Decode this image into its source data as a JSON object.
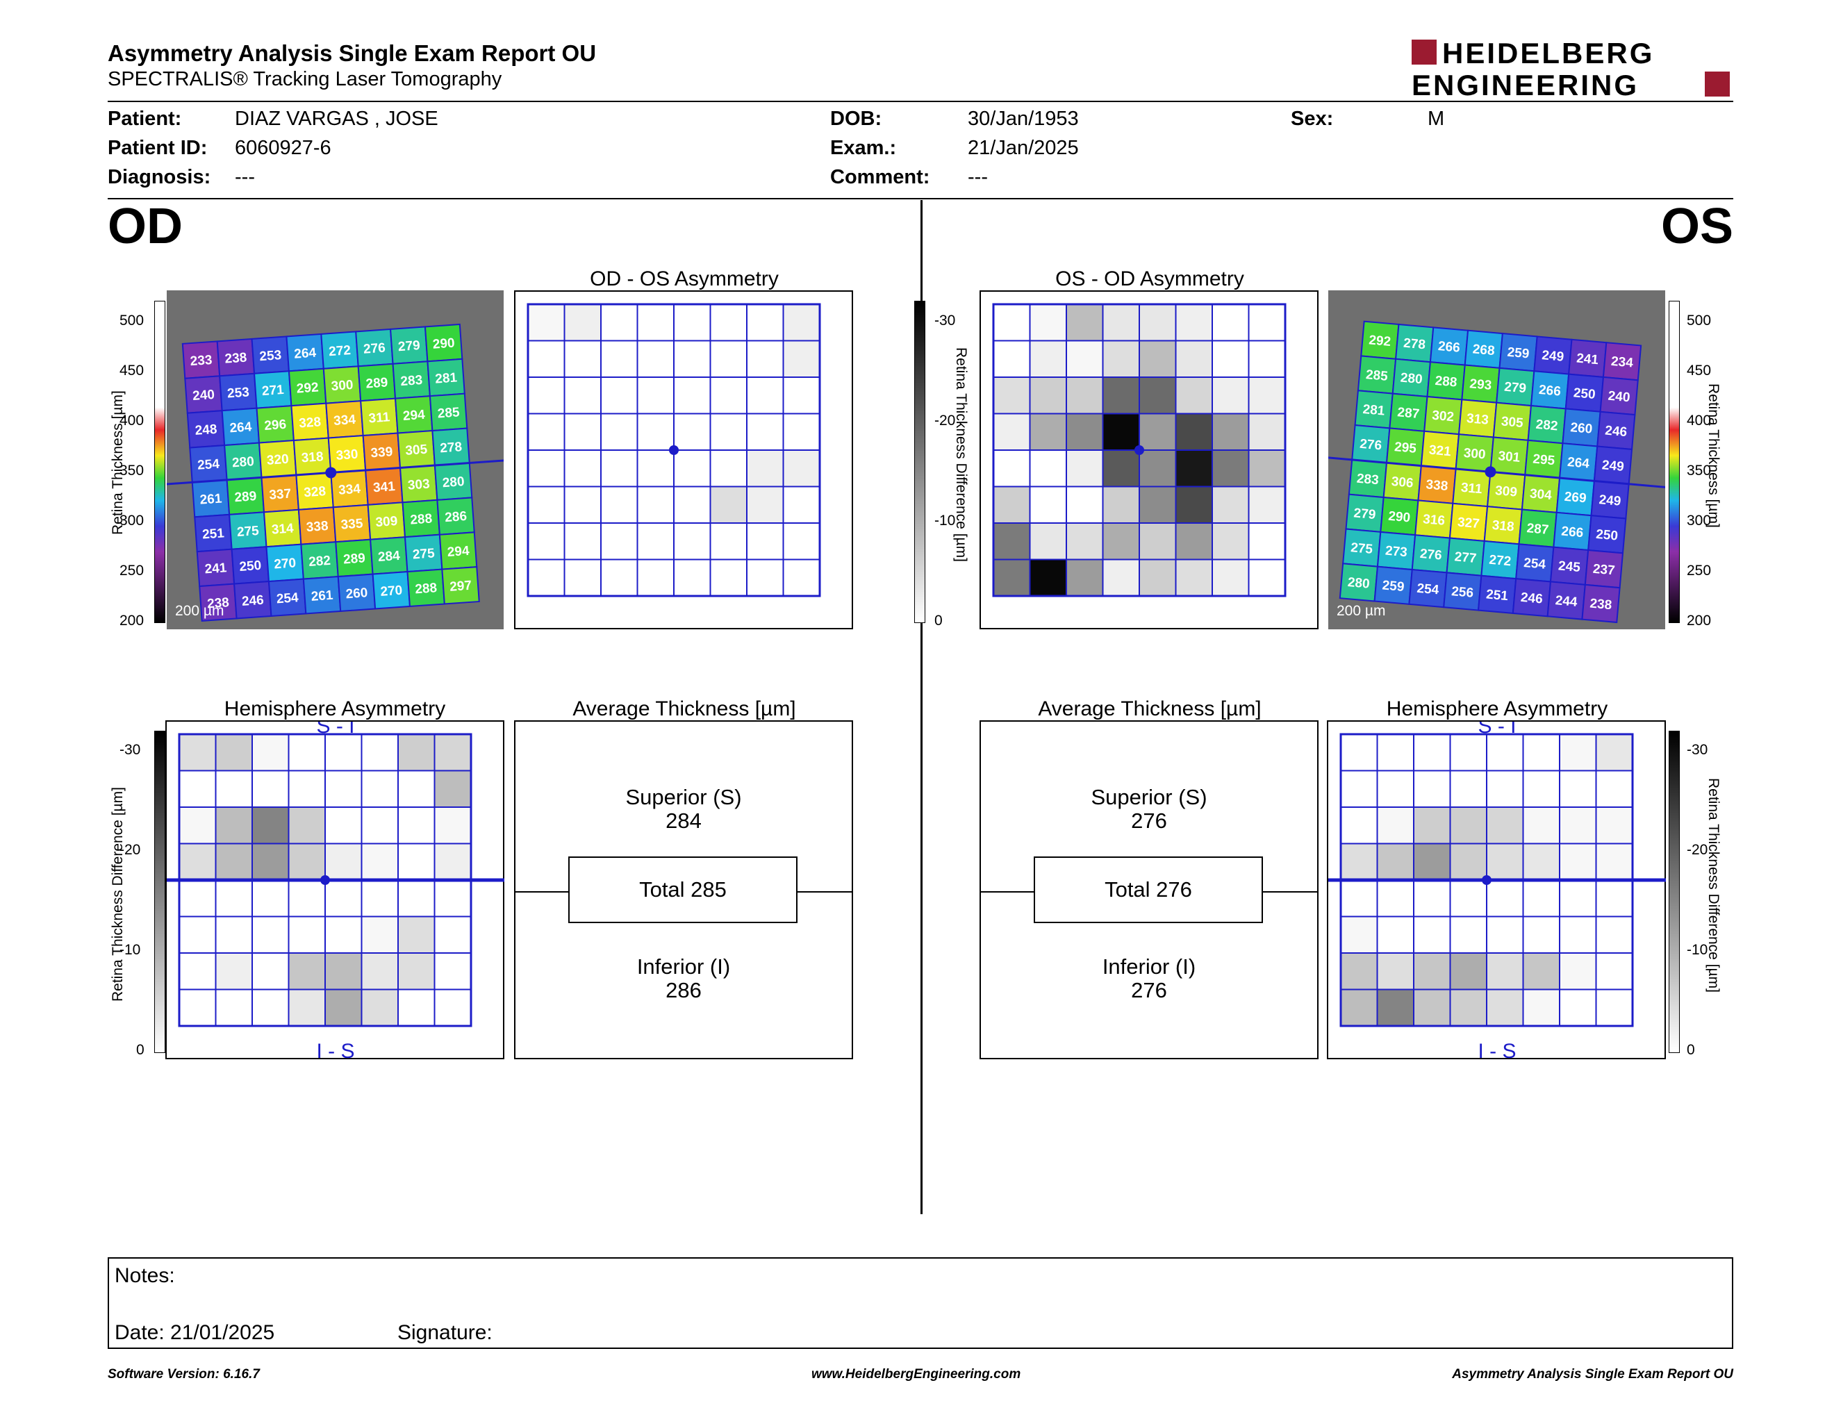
{
  "header": {
    "title": "Asymmetry Analysis Single Exam Report OU",
    "subtitle": "SPECTRALIS® Tracking Laser Tomography",
    "logo_line1": "HEIDELBERG",
    "logo_line2": "ENGINEERING",
    "brand_color": "#9b1b30"
  },
  "patient": {
    "patient_label": "Patient:",
    "patient_value": "DIAZ VARGAS , JOSE",
    "id_label": "Patient ID:",
    "id_value": "6060927-6",
    "diagnosis_label": "Diagnosis:",
    "diagnosis_value": "---",
    "dob_label": "DOB:",
    "dob_value": "30/Jan/1953",
    "exam_label": "Exam.:",
    "exam_value": "21/Jan/2025",
    "comment_label": "Comment:",
    "comment_value": "---",
    "sex_label": "Sex:",
    "sex_value": "M"
  },
  "od": {
    "eye_label": "OD",
    "asym_title": "OD - OS Asymmetry",
    "hemi_title": "Hemisphere Asymmetry",
    "hemi_top": "S - I",
    "hemi_bottom": "I - S",
    "avg_title": "Average Thickness [µm]",
    "superior_label": "Superior (S)",
    "superior_value": "284",
    "total_label": "Total 285",
    "inferior_label": "Inferior (I)",
    "inferior_value": "286",
    "scale_bar": "200 µm",
    "thickness_grid": [
      [
        233,
        238,
        253,
        264,
        272,
        276,
        279,
        290
      ],
      [
        240,
        253,
        271,
        292,
        300,
        289,
        283,
        281
      ],
      [
        248,
        264,
        296,
        328,
        334,
        311,
        294,
        285
      ],
      [
        254,
        280,
        320,
        318,
        330,
        339,
        305,
        278
      ],
      [
        261,
        289,
        337,
        328,
        334,
        341,
        303,
        280
      ],
      [
        251,
        275,
        314,
        338,
        335,
        309,
        288,
        286
      ],
      [
        241,
        250,
        270,
        282,
        289,
        284,
        275,
        294
      ],
      [
        238,
        246,
        254,
        261,
        260,
        270,
        288,
        297
      ]
    ],
    "asym_grid": [
      [
        1,
        2,
        0,
        0,
        0,
        0,
        0,
        2
      ],
      [
        0,
        0,
        0,
        0,
        0,
        0,
        0,
        2
      ],
      [
        0,
        0,
        0,
        0,
        0,
        0,
        0,
        0
      ],
      [
        0,
        0,
        0,
        0,
        0,
        0,
        0,
        0
      ],
      [
        0,
        0,
        0,
        0,
        0,
        0,
        2,
        2
      ],
      [
        0,
        0,
        0,
        0,
        0,
        4,
        2,
        0
      ],
      [
        0,
        0,
        0,
        0,
        0,
        0,
        0,
        0
      ],
      [
        0,
        0,
        0,
        0,
        0,
        0,
        0,
        0
      ]
    ],
    "hemi_grid": [
      [
        4,
        6,
        1,
        0,
        0,
        0,
        6,
        5
      ],
      [
        0,
        0,
        0,
        0,
        0,
        0,
        0,
        8
      ],
      [
        1,
        8,
        15,
        6,
        0,
        0,
        0,
        1
      ],
      [
        4,
        8,
        12,
        6,
        2,
        1,
        0,
        2
      ],
      [
        0,
        0,
        0,
        0,
        0,
        0,
        0,
        0
      ],
      [
        0,
        0,
        0,
        0,
        0,
        1,
        4,
        0
      ],
      [
        0,
        2,
        0,
        7,
        8,
        3,
        4,
        0
      ],
      [
        0,
        0,
        0,
        3,
        10,
        4,
        0,
        0
      ]
    ]
  },
  "os": {
    "eye_label": "OS",
    "asym_title": "OS - OD Asymmetry",
    "hemi_title": "Hemisphere Asymmetry",
    "hemi_top": "S - I",
    "hemi_bottom": "I - S",
    "avg_title": "Average Thickness [µm]",
    "superior_label": "Superior (S)",
    "superior_value": "276",
    "total_label": "Total 276",
    "inferior_label": "Inferior (I)",
    "inferior_value": "276",
    "scale_bar": "200 µm",
    "thickness_grid": [
      [
        292,
        278,
        266,
        268,
        259,
        249,
        241,
        234
      ],
      [
        285,
        280,
        288,
        293,
        279,
        266,
        250,
        240
      ],
      [
        281,
        287,
        302,
        313,
        305,
        282,
        260,
        246
      ],
      [
        276,
        295,
        321,
        300,
        301,
        295,
        264,
        249
      ],
      [
        283,
        306,
        338,
        311,
        309,
        304,
        269,
        249
      ],
      [
        279,
        290,
        316,
        327,
        318,
        287,
        266,
        250
      ],
      [
        275,
        273,
        276,
        277,
        272,
        254,
        245,
        237
      ],
      [
        280,
        259,
        254,
        256,
        251,
        246,
        244,
        238
      ]
    ],
    "asym_grid": [
      [
        0,
        1,
        8,
        3,
        3,
        2,
        0,
        0
      ],
      [
        0,
        2,
        1,
        4,
        8,
        3,
        0,
        0
      ],
      [
        4,
        6,
        6,
        18,
        18,
        5,
        2,
        2
      ],
      [
        2,
        10,
        14,
        30,
        12,
        22,
        12,
        3
      ],
      [
        0,
        0,
        2,
        20,
        14,
        28,
        16,
        8
      ],
      [
        6,
        0,
        0,
        6,
        14,
        22,
        4,
        2
      ],
      [
        16,
        3,
        4,
        10,
        6,
        12,
        4,
        0
      ],
      [
        16,
        30,
        12,
        2,
        6,
        4,
        2,
        0
      ]
    ],
    "hemi_grid": [
      [
        0,
        0,
        0,
        0,
        0,
        0,
        1,
        3
      ],
      [
        0,
        0,
        0,
        0,
        0,
        0,
        0,
        0
      ],
      [
        0,
        1,
        6,
        6,
        5,
        1,
        1,
        1
      ],
      [
        4,
        7,
        12,
        6,
        4,
        3,
        1,
        1
      ],
      [
        0,
        0,
        0,
        0,
        0,
        0,
        0,
        0
      ],
      [
        1,
        0,
        0,
        0,
        0,
        0,
        0,
        0
      ],
      [
        7,
        4,
        7,
        10,
        4,
        7,
        1,
        0
      ],
      [
        8,
        15,
        7,
        6,
        4,
        1,
        0,
        0
      ]
    ]
  },
  "scales": {
    "thickness_label": "Retina  Thickness [µm]",
    "thickness_ticks": [
      "500",
      "450",
      "400",
      "350",
      "300",
      "250",
      "200"
    ],
    "diff_label": "Retina Thickness Difference [µm]",
    "diff_ticks": [
      "-30",
      "-20",
      "-10",
      "0"
    ]
  },
  "notes": {
    "notes_label": "Notes:",
    "date_label": "Date: 21/01/2025",
    "signature_label": "Signature:"
  },
  "footer": {
    "software": "Software Version: 6.16.7",
    "website": "www.HeidelbergEngineering.com",
    "report_name": "Asymmetry Analysis Single Exam Report OU"
  }
}
